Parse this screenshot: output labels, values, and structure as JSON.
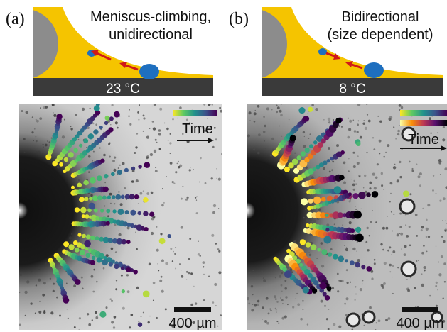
{
  "figure": {
    "panels": [
      {
        "label": "(a)",
        "title_line1": "Meniscus-climbing,",
        "title_line2": "unidirectional",
        "temperature": "23 °C",
        "time_label": "Time",
        "scale_bar": "400 µm",
        "colorbars": 1
      },
      {
        "label": "(b)",
        "title_line1": "Bidirectional",
        "title_line2": "(size dependent)",
        "temperature": "8 °C",
        "time_label": "Time",
        "scale_bar": "400 µm",
        "colorbars": 2
      }
    ],
    "colors": {
      "meniscus": "#f5c400",
      "substrate": "#3a3a3a",
      "pillar": "#8c8c8c",
      "droplet": "#1e6fbf",
      "arrow": "#d01818",
      "viridis": [
        "#440154",
        "#3b528b",
        "#21918c",
        "#5ec962",
        "#fde725"
      ],
      "inferno": [
        "#000004",
        "#57106e",
        "#bc3754",
        "#f98e09",
        "#fcffa4"
      ]
    }
  }
}
